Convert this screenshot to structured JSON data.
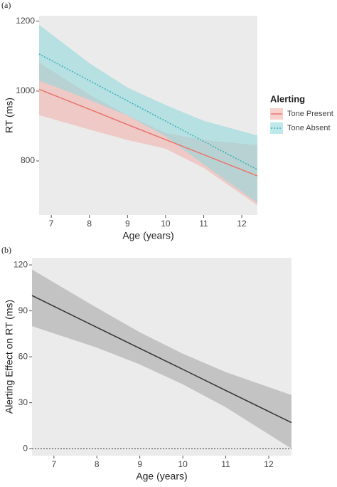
{
  "chart_data": [
    {
      "type": "line",
      "title": "(a)",
      "xlabel": "Age (years)",
      "ylabel": "RT (ms)",
      "x": [
        6.68,
        8,
        9,
        10,
        11,
        12.41
      ],
      "xlim": [
        6.68,
        12.41
      ],
      "xticks": [
        7,
        8,
        9,
        10,
        11,
        12
      ],
      "ylim": [
        645,
        1216
      ],
      "yticks": [
        800,
        1000,
        1200
      ],
      "legend_title": "Alerting",
      "legend": "right",
      "series": [
        {
          "name": "Tone Present",
          "color": "#e8766d",
          "band_color": "#f2b3ad",
          "dash": false,
          "values": [
            1005,
            948,
            904,
            861,
            818,
            757
          ],
          "lower": [
            931,
            890,
            860,
            835,
            780,
            673
          ],
          "upper": [
            1082,
            990,
            930,
            880,
            860,
            845
          ]
        },
        {
          "name": "Tone Absent",
          "color": "#35b3ba",
          "band_color": "#92d8dc",
          "dash": true,
          "values": [
            1106,
            1030,
            972,
            914,
            856,
            775
          ],
          "lower": [
            1030,
            975,
            930,
            870,
            790,
            680
          ],
          "upper": [
            1190,
            1080,
            1010,
            960,
            915,
            873
          ]
        }
      ]
    },
    {
      "type": "line",
      "title": "(b)",
      "xlabel": "Age (years)",
      "ylabel": "Alerting Effect on RT (ms)",
      "x": [
        6.49,
        8,
        9,
        10,
        11,
        12.53
      ],
      "xlim": [
        6.49,
        12.53
      ],
      "xticks": [
        7,
        8,
        9,
        10,
        11,
        12
      ],
      "ylim": [
        -4.6,
        124.7
      ],
      "yticks": [
        0,
        30,
        60,
        90,
        120
      ],
      "hline": 0,
      "series": [
        {
          "color": "#333333",
          "band_color": "#a9a9a9",
          "dash": false,
          "values": [
            100,
            79.2,
            65.5,
            51.8,
            38.0,
            17
          ],
          "lower": [
            80,
            66,
            55,
            42,
            27,
            0
          ],
          "upper": [
            117,
            92,
            76,
            62,
            50,
            35
          ]
        }
      ]
    }
  ]
}
